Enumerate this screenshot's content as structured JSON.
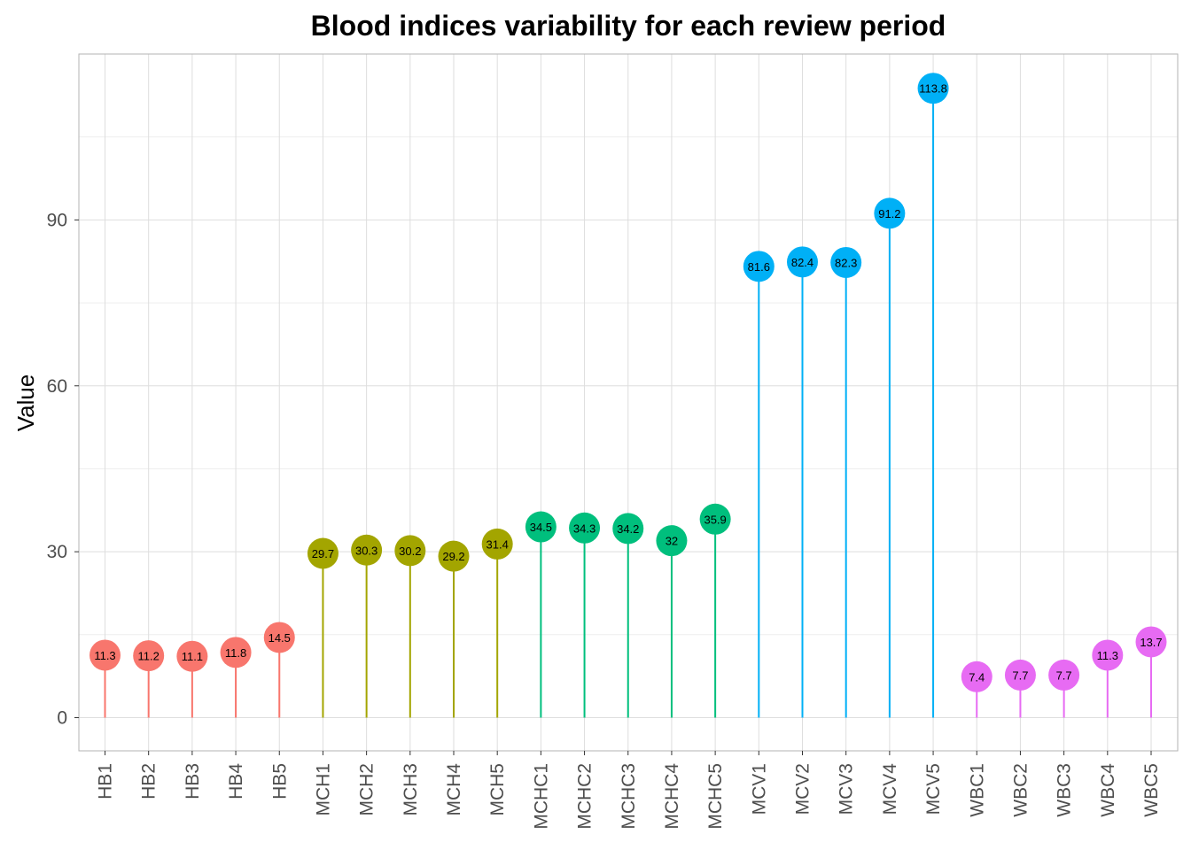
{
  "chart_data": {
    "type": "lollipop",
    "title": "Blood indices variability for each review period",
    "xlabel": "",
    "ylabel": "Value",
    "ylim": [
      -6,
      120
    ],
    "yticks": [
      0,
      30,
      60,
      90
    ],
    "grid": true,
    "categories": [
      "HB1",
      "HB2",
      "HB3",
      "HB4",
      "HB5",
      "MCH1",
      "MCH2",
      "MCH3",
      "MCH4",
      "MCH5",
      "MCHC1",
      "MCHC2",
      "MCHC3",
      "MCHC4",
      "MCHC5",
      "MCV1",
      "MCV2",
      "MCV3",
      "MCV4",
      "MCV5",
      "WBC1",
      "WBC2",
      "WBC3",
      "WBC4",
      "WBC5"
    ],
    "values": [
      11.3,
      11.2,
      11.1,
      11.8,
      14.5,
      29.7,
      30.3,
      30.2,
      29.2,
      31.4,
      34.5,
      34.3,
      34.2,
      32,
      35.9,
      81.6,
      82.4,
      82.3,
      91.2,
      113.8,
      7.4,
      7.7,
      7.7,
      11.3,
      13.7
    ],
    "labels": [
      "11.3",
      "11.2",
      "11.1",
      "11.8",
      "14.5",
      "29.7",
      "30.3",
      "30.2",
      "29.2",
      "31.4",
      "34.5",
      "34.3",
      "34.2",
      "32",
      "35.9",
      "81.6",
      "82.4",
      "82.3",
      "91.2",
      "113.8",
      "7.4",
      "7.7",
      "7.7",
      "11.3",
      "13.7"
    ],
    "groups": [
      "HB",
      "HB",
      "HB",
      "HB",
      "HB",
      "MCH",
      "MCH",
      "MCH",
      "MCH",
      "MCH",
      "MCHC",
      "MCHC",
      "MCHC",
      "MCHC",
      "MCHC",
      "MCV",
      "MCV",
      "MCV",
      "MCV",
      "MCV",
      "WBC",
      "WBC",
      "WBC",
      "WBC",
      "WBC"
    ],
    "colors": {
      "HB": "#F8766D",
      "MCH": "#A3A500",
      "MCHC": "#00BF7D",
      "MCV": "#00B0F6",
      "WBC": "#E76BF3"
    }
  }
}
